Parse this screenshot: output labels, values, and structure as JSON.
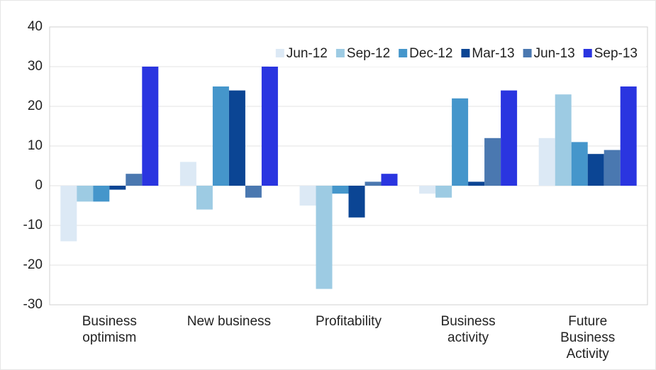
{
  "chart_data": {
    "type": "bar",
    "categories": [
      "Business\noptimism",
      "New business",
      "Profitability",
      "Business\nactivity",
      "Future\nBusiness\nActivity"
    ],
    "series": [
      {
        "name": "Jun-12",
        "color": "#dce9f5",
        "values": [
          -14,
          6,
          -5,
          -2,
          12
        ]
      },
      {
        "name": "Sep-12",
        "color": "#9dcbe3",
        "values": [
          -4,
          -6,
          -26,
          -3,
          23
        ]
      },
      {
        "name": "Dec-12",
        "color": "#4596cb",
        "values": [
          -4,
          25,
          -2,
          22,
          11
        ]
      },
      {
        "name": "Mar-13",
        "color": "#0b4594",
        "values": [
          -1,
          24,
          -8,
          1,
          8
        ]
      },
      {
        "name": "Jun-13",
        "color": "#4a78b0",
        "values": [
          3,
          -3,
          1,
          12,
          9
        ]
      },
      {
        "name": "Sep-13",
        "color": "#2a35e0",
        "values": [
          30,
          30,
          3,
          24,
          25
        ]
      }
    ],
    "ylim": [
      -30,
      40
    ],
    "yticks": [
      -30,
      -20,
      -10,
      0,
      10,
      20,
      30,
      40
    ],
    "grid": true,
    "legend": "top-right"
  }
}
